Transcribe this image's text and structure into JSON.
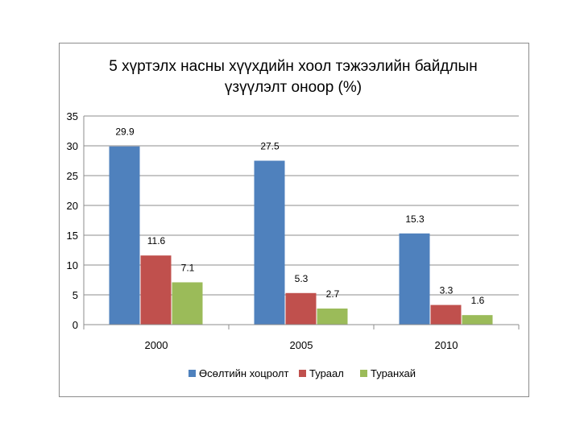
{
  "chart_data": {
    "type": "bar",
    "title_lines": [
      "5 хүртэлх насны хүүхдийн хоол тэжээлийн байдлын",
      "үзүүлэлт оноор (%)"
    ],
    "categories": [
      "2000",
      "2005",
      "2010"
    ],
    "series": [
      {
        "name": "Өсөлтийн хоцролт",
        "color": "#4f81bd",
        "values": [
          29.9,
          27.5,
          15.3
        ]
      },
      {
        "name": "Тураал",
        "color": "#c0504d",
        "values": [
          11.6,
          5.3,
          3.3
        ]
      },
      {
        "name": "Туранхай",
        "color": "#9bbb59",
        "values": [
          7.1,
          2.7,
          1.6
        ]
      }
    ],
    "ylim": [
      0,
      35
    ],
    "yticks": [
      0,
      5,
      10,
      15,
      20,
      25,
      30,
      35
    ],
    "xlabel": "",
    "ylabel": "",
    "grid": true,
    "legend": "bottom"
  }
}
